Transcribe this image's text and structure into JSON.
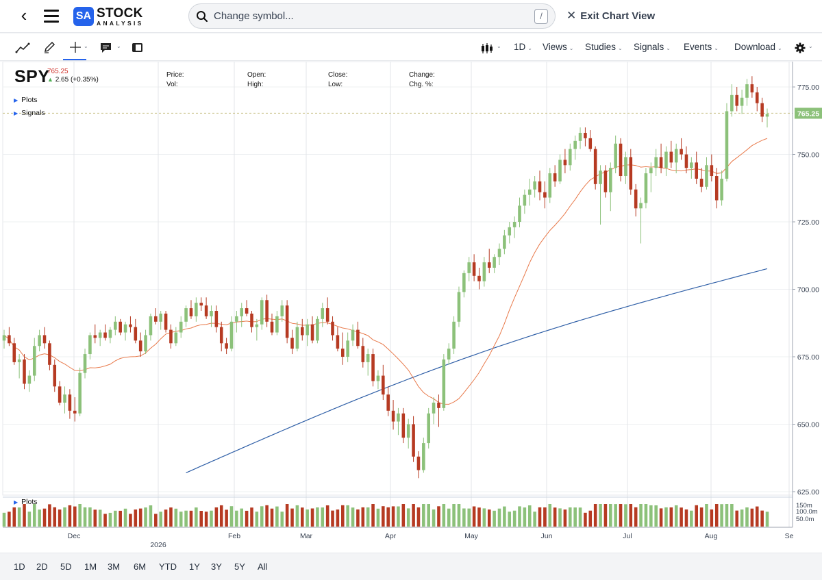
{
  "header": {
    "logo_sa": "SA",
    "logo_word1": "STOCK",
    "logo_word2": "ANALYSIS",
    "search_placeholder": "Change symbol...",
    "search_shortcut": "/",
    "exit_label": "Exit Chart View"
  },
  "toolbar": {
    "interval": "1D",
    "menus": [
      "Views",
      "Studies",
      "Signals",
      "Events",
      "Download"
    ]
  },
  "quote": {
    "symbol": "SPY",
    "price": "765.25",
    "change": "2.65 (+0.35%)",
    "labels": {
      "price": "Price:",
      "vol": "Vol:",
      "open": "Open:",
      "high": "High:",
      "close": "Close:",
      "low": "Low:",
      "change": "Change:",
      "chg_pct": "Chg. %:"
    }
  },
  "panels": {
    "plots": "Plots",
    "signals": "Signals",
    "volume_plots": "Plots"
  },
  "range_buttons": [
    "1D",
    "2D",
    "5D",
    "1M",
    "3M",
    "6M",
    "YTD",
    "1Y",
    "3Y",
    "5Y",
    "All"
  ],
  "colors": {
    "up": "#8cc17a",
    "down": "#b63a22",
    "ma50": "#e8794a",
    "ma200": "#2f5fa7",
    "accent": "#2563eb"
  },
  "chart_data": {
    "type": "candlestick",
    "symbol": "SPY",
    "y_ticks": [
      775,
      750,
      725,
      700,
      675,
      650,
      625
    ],
    "ylim": [
      624,
      784
    ],
    "x_month_labels": [
      "Dec",
      "Feb",
      "Mar",
      "Apr",
      "May",
      "Jun",
      "Jul",
      "Aug",
      "Se"
    ],
    "x_year_label": "2026",
    "last_price_label": "765.25",
    "volume_ticks": [
      "150m",
      "100.0m",
      "50.0m"
    ],
    "ohlc": [
      [
        681,
        685,
        678,
        683
      ],
      [
        683,
        686,
        679,
        680
      ],
      [
        680,
        682,
        672,
        673
      ],
      [
        673,
        676,
        667,
        674
      ],
      [
        674,
        676,
        663,
        665
      ],
      [
        665,
        670,
        662,
        668
      ],
      [
        668,
        682,
        666,
        679
      ],
      [
        679,
        685,
        677,
        683
      ],
      [
        683,
        686,
        678,
        680
      ],
      [
        680,
        681,
        670,
        672
      ],
      [
        672,
        674,
        662,
        664
      ],
      [
        664,
        666,
        657,
        658
      ],
      [
        658,
        664,
        654,
        661
      ],
      [
        661,
        663,
        652,
        655
      ],
      [
        655,
        660,
        651,
        654
      ],
      [
        654,
        671,
        653,
        669
      ],
      [
        669,
        678,
        667,
        676
      ],
      [
        676,
        684,
        674,
        683
      ],
      [
        683,
        687,
        680,
        682
      ],
      [
        682,
        685,
        679,
        684
      ],
      [
        684,
        687,
        681,
        682
      ],
      [
        682,
        686,
        680,
        685
      ],
      [
        685,
        690,
        683,
        688
      ],
      [
        688,
        689,
        683,
        684
      ],
      [
        684,
        688,
        681,
        687
      ],
      [
        687,
        690,
        684,
        686
      ],
      [
        686,
        689,
        680,
        681
      ],
      [
        681,
        684,
        675,
        677
      ],
      [
        677,
        685,
        676,
        683
      ],
      [
        683,
        691,
        681,
        690
      ],
      [
        690,
        693,
        687,
        688
      ],
      [
        688,
        692,
        685,
        691
      ],
      [
        691,
        692,
        684,
        685
      ],
      [
        685,
        687,
        678,
        680
      ],
      [
        680,
        686,
        679,
        684
      ],
      [
        684,
        690,
        682,
        688
      ],
      [
        688,
        694,
        686,
        693
      ],
      [
        693,
        696,
        689,
        690
      ],
      [
        690,
        697,
        688,
        695
      ],
      [
        695,
        697,
        692,
        694
      ],
      [
        694,
        697,
        689,
        690
      ],
      [
        690,
        694,
        686,
        692
      ],
      [
        692,
        694,
        684,
        686
      ],
      [
        686,
        688,
        677,
        680
      ],
      [
        680,
        682,
        676,
        678
      ],
      [
        678,
        690,
        677,
        688
      ],
      [
        688,
        692,
        684,
        690
      ],
      [
        690,
        695,
        686,
        693
      ],
      [
        693,
        696,
        690,
        691
      ],
      [
        691,
        692,
        684,
        686
      ],
      [
        686,
        689,
        681,
        687
      ],
      [
        687,
        697,
        685,
        696
      ],
      [
        696,
        698,
        686,
        688
      ],
      [
        688,
        691,
        683,
        684
      ],
      [
        684,
        692,
        683,
        690
      ],
      [
        690,
        696,
        688,
        694
      ],
      [
        694,
        696,
        680,
        682
      ],
      [
        682,
        685,
        676,
        678
      ],
      [
        678,
        688,
        677,
        686
      ],
      [
        686,
        689,
        681,
        683
      ],
      [
        683,
        689,
        679,
        687
      ],
      [
        687,
        690,
        680,
        681
      ],
      [
        681,
        690,
        680,
        689
      ],
      [
        689,
        695,
        686,
        693
      ],
      [
        693,
        697,
        687,
        688
      ],
      [
        688,
        690,
        681,
        683
      ],
      [
        683,
        686,
        677,
        678
      ],
      [
        678,
        684,
        672,
        675
      ],
      [
        675,
        684,
        673,
        681
      ],
      [
        681,
        687,
        679,
        685
      ],
      [
        685,
        688,
        678,
        679
      ],
      [
        679,
        682,
        671,
        673
      ],
      [
        673,
        678,
        668,
        676
      ],
      [
        676,
        678,
        664,
        666
      ],
      [
        666,
        670,
        663,
        668
      ],
      [
        668,
        672,
        659,
        661
      ],
      [
        661,
        664,
        653,
        655
      ],
      [
        655,
        659,
        648,
        651
      ],
      [
        651,
        656,
        646,
        654
      ],
      [
        654,
        656,
        643,
        645
      ],
      [
        645,
        652,
        641,
        650
      ],
      [
        650,
        653,
        636,
        638
      ],
      [
        638,
        640,
        630,
        633
      ],
      [
        633,
        645,
        632,
        643
      ],
      [
        643,
        656,
        641,
        654
      ],
      [
        654,
        660,
        650,
        658
      ],
      [
        658,
        661,
        649,
        656
      ],
      [
        656,
        676,
        655,
        674
      ],
      [
        674,
        680,
        672,
        678
      ],
      [
        678,
        690,
        676,
        688
      ],
      [
        688,
        701,
        686,
        699
      ],
      [
        699,
        707,
        697,
        706
      ],
      [
        706,
        712,
        703,
        710
      ],
      [
        710,
        713,
        703,
        705
      ],
      [
        705,
        708,
        700,
        703
      ],
      [
        703,
        712,
        701,
        710
      ],
      [
        710,
        715,
        706,
        708
      ],
      [
        708,
        713,
        706,
        712
      ],
      [
        712,
        717,
        709,
        715
      ],
      [
        715,
        722,
        713,
        720
      ],
      [
        720,
        725,
        717,
        723
      ],
      [
        723,
        727,
        719,
        725
      ],
      [
        725,
        734,
        723,
        731
      ],
      [
        731,
        737,
        728,
        735
      ],
      [
        735,
        741,
        731,
        737
      ],
      [
        737,
        742,
        734,
        740
      ],
      [
        740,
        744,
        733,
        736
      ],
      [
        736,
        740,
        730,
        734
      ],
      [
        734,
        745,
        732,
        743
      ],
      [
        743,
        746,
        738,
        740
      ],
      [
        740,
        750,
        739,
        748
      ],
      [
        748,
        752,
        743,
        746
      ],
      [
        746,
        754,
        744,
        752
      ],
      [
        752,
        757,
        748,
        755
      ],
      [
        755,
        760,
        752,
        758
      ],
      [
        758,
        760,
        753,
        756
      ],
      [
        756,
        759,
        751,
        752
      ],
      [
        752,
        753,
        737,
        739
      ],
      [
        739,
        746,
        724,
        744
      ],
      [
        744,
        746,
        734,
        736
      ],
      [
        736,
        747,
        729,
        745
      ],
      [
        745,
        757,
        743,
        754
      ],
      [
        754,
        756,
        740,
        742
      ],
      [
        742,
        751,
        739,
        749
      ],
      [
        749,
        752,
        735,
        737
      ],
      [
        737,
        739,
        727,
        730
      ],
      [
        730,
        734,
        717,
        732
      ],
      [
        732,
        745,
        730,
        743
      ],
      [
        743,
        747,
        736,
        745
      ],
      [
        745,
        752,
        742,
        749
      ],
      [
        749,
        754,
        743,
        745
      ],
      [
        745,
        753,
        742,
        751
      ],
      [
        751,
        755,
        745,
        747
      ],
      [
        747,
        754,
        743,
        752
      ],
      [
        752,
        756,
        748,
        750
      ],
      [
        750,
        753,
        743,
        745
      ],
      [
        745,
        749,
        741,
        747
      ],
      [
        747,
        751,
        739,
        741
      ],
      [
        741,
        745,
        736,
        738
      ],
      [
        738,
        749,
        737,
        746
      ],
      [
        746,
        750,
        740,
        742
      ],
      [
        742,
        745,
        730,
        733
      ],
      [
        733,
        744,
        731,
        741
      ],
      [
        741,
        769,
        740,
        766
      ],
      [
        766,
        776,
        764,
        772
      ],
      [
        772,
        775,
        766,
        768
      ],
      [
        768,
        774,
        765,
        771
      ],
      [
        771,
        778,
        768,
        776
      ],
      [
        776,
        779,
        771,
        773
      ],
      [
        773,
        775,
        766,
        769
      ],
      [
        769,
        771,
        762,
        764
      ],
      [
        764,
        767,
        760,
        765
      ]
    ]
  }
}
